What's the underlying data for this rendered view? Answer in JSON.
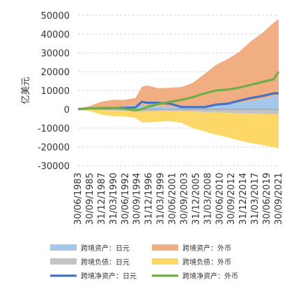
{
  "chart_data": {
    "type": "area",
    "ylabel": "亿美元",
    "ylim": [
      -30000,
      50000
    ],
    "yticks": [
      50000,
      40000,
      30000,
      20000,
      10000,
      0,
      -10000,
      -20000,
      -30000
    ],
    "ytick_labels": [
      "50000",
      "40000",
      "30000",
      "20000",
      "10000",
      "0",
      "-10000",
      "-20000",
      "-30000"
    ],
    "xtick_labels": [
      "30/06/1983",
      "30/09/1985",
      "31/12/1987",
      "31/03/1990",
      "30/06/1992",
      "30/09/1994",
      "31/12/1996",
      "31/03/1999",
      "30/06/2001",
      "30/09/2003",
      "31/12/2005",
      "31/03/2008",
      "30/06/2010",
      "30/09/2012",
      "31/12/2014",
      "31/03/2017",
      "30/06/2019",
      "30/09/2021"
    ],
    "x": [
      1983.5,
      1985.75,
      1988.0,
      1990.25,
      1992.5,
      1994.75,
      1996.0,
      1997.0,
      1999.25,
      2001.5,
      2003.75,
      2006.0,
      2008.25,
      2010.5,
      2012.75,
      2015.0,
      2017.25,
      2019.5,
      2021.75,
      2022.75
    ],
    "series": [
      {
        "name": "跨境资产：日元",
        "type": "area",
        "color": "#a4c8ec",
        "stack": "pos",
        "values": [
          100,
          600,
          1000,
          1300,
          1700,
          2200,
          2000,
          1900,
          1600,
          1500,
          1400,
          1400,
          1800,
          2200,
          2700,
          3500,
          4500,
          5500,
          7000,
          8000
        ]
      },
      {
        "name": "跨境资产：外币",
        "type": "area",
        "color": "#f1ae83",
        "stack": "pos",
        "values": [
          300,
          1100,
          3000,
          3800,
          3300,
          3800,
          10000,
          10800,
          9600,
          10000,
          10400,
          12800,
          17000,
          21500,
          24000,
          27000,
          31500,
          35000,
          39000,
          40000
        ]
      },
      {
        "name": "跨境负债：日元",
        "type": "area",
        "color": "#c4c4c4",
        "stack": "neg",
        "values": [
          -50,
          -200,
          -400,
          -600,
          -900,
          -1200,
          -1300,
          -1200,
          -1000,
          -900,
          -1000,
          -1200,
          -1500,
          -1700,
          -1900,
          -2100,
          -2300,
          -2500,
          -2700,
          -2800
        ]
      },
      {
        "name": "跨境负债：外币",
        "type": "area",
        "color": "#fdd868",
        "stack": "neg",
        "values": [
          -100,
          -700,
          -2400,
          -3000,
          -2900,
          -3300,
          -5600,
          -5800,
          -5500,
          -5400,
          -6200,
          -8800,
          -10300,
          -11800,
          -13000,
          -14400,
          -15700,
          -16500,
          -17500,
          -18000
        ]
      },
      {
        "name": "跨境净资产：日元",
        "type": "line",
        "color": "#4472c4",
        "values": [
          50,
          400,
          600,
          700,
          800,
          1000,
          4000,
          3500,
          3500,
          3000,
          1200,
          1200,
          1200,
          2500,
          3000,
          4500,
          6000,
          7000,
          8500,
          8500
        ]
      },
      {
        "name": "跨境净资产：外币",
        "type": "line",
        "color": "#70ad47",
        "values": [
          200,
          400,
          600,
          800,
          300,
          -600,
          100,
          1200,
          2800,
          4000,
          5000,
          6500,
          8500,
          10000,
          10500,
          11500,
          13000,
          14500,
          16000,
          20000
        ]
      }
    ],
    "legend": [
      {
        "label": "跨境资产：日元",
        "kind": "area",
        "color": "#a4c8ec"
      },
      {
        "label": "跨境资产：外币",
        "kind": "area",
        "color": "#f1ae83"
      },
      {
        "label": "跨境负债：日元",
        "kind": "area",
        "color": "#c4c4c4"
      },
      {
        "label": "跨境负债：外币",
        "kind": "area",
        "color": "#fdd868"
      },
      {
        "label": "跨境净资产：日元",
        "kind": "line",
        "color": "#4472c4"
      },
      {
        "label": "跨境净资产：外币",
        "kind": "line",
        "color": "#70ad47"
      }
    ],
    "legend_position": "bottom",
    "grid": true
  }
}
